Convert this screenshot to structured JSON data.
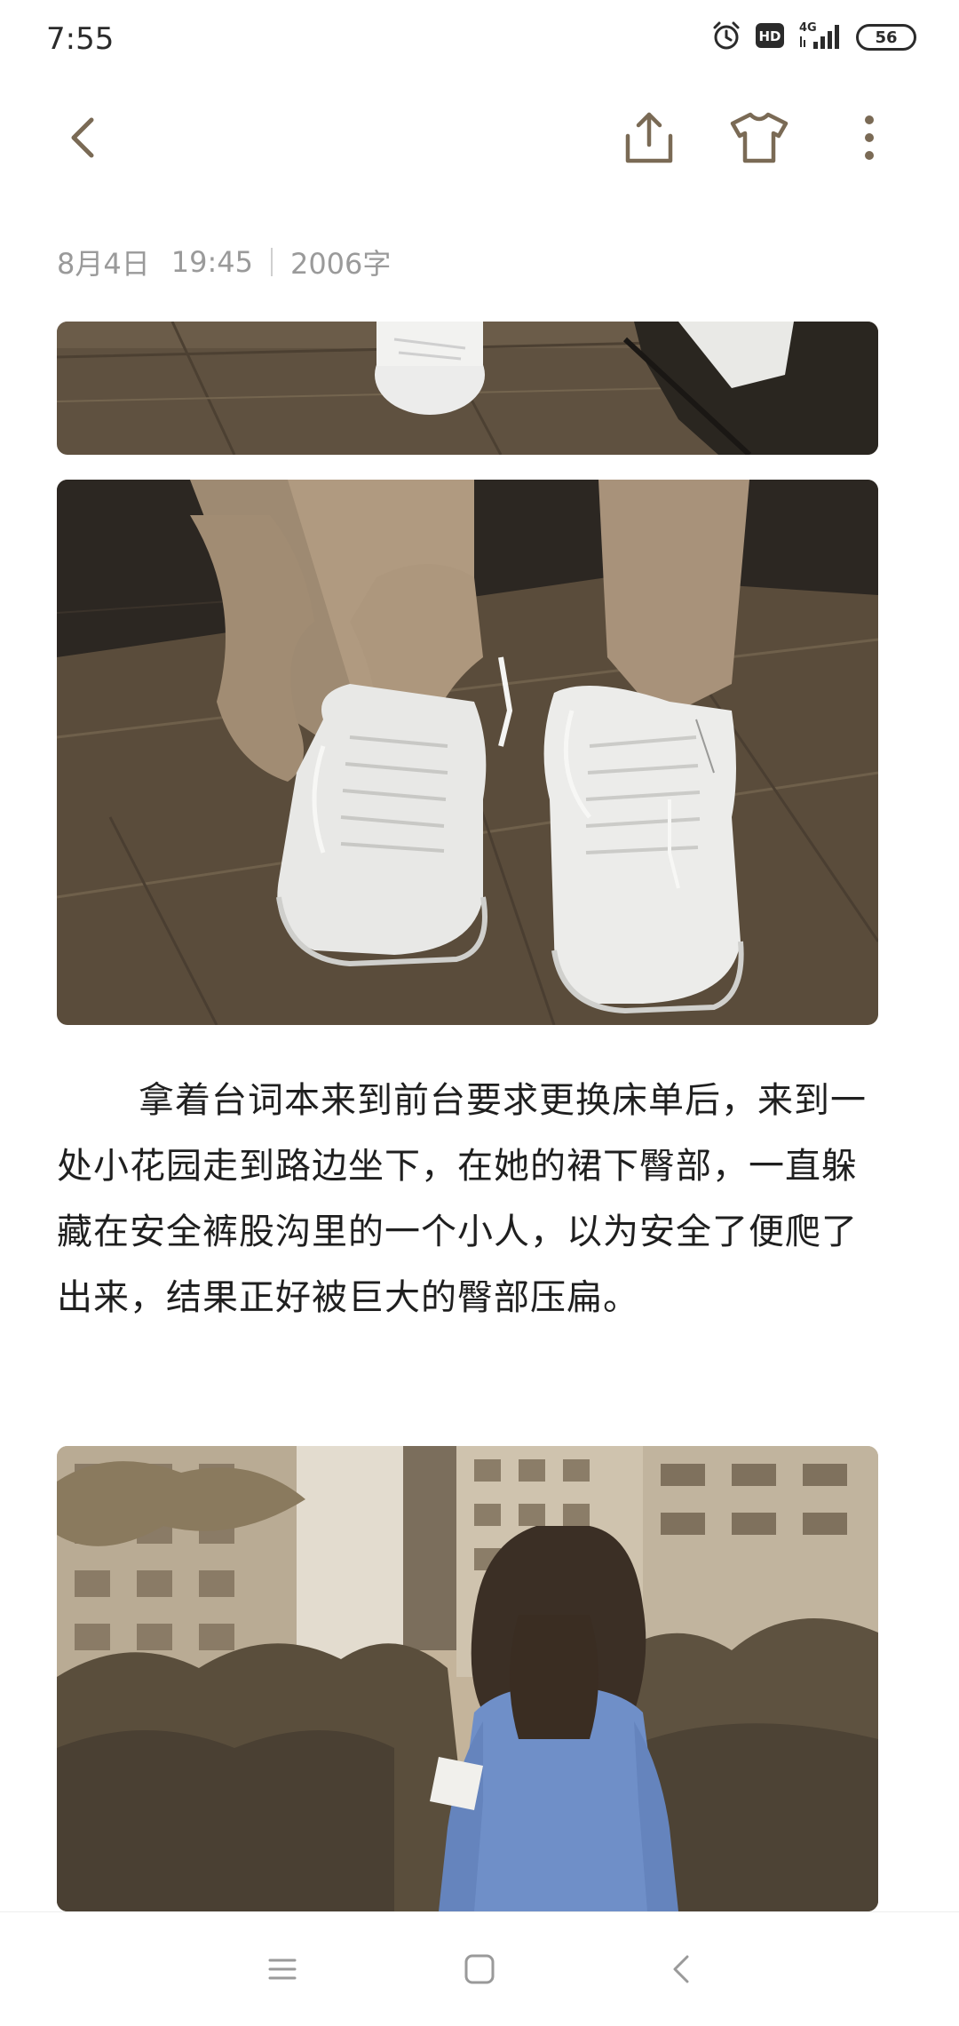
{
  "status_bar": {
    "time": "7:55",
    "network_label": "4G",
    "hd_label": "HD",
    "battery_level": "56",
    "icons": [
      "alarm-icon",
      "hd-icon",
      "signal-icon",
      "battery-icon"
    ]
  },
  "toolbar": {
    "icons": [
      "back-icon",
      "share-icon",
      "theme-icon",
      "more-icon"
    ]
  },
  "note": {
    "date": "8月4日",
    "time": "19:45",
    "word_count": "2006字",
    "paragraph": "拿着台词本来到前台要求更换床单后，来到一处小花园走到路边坐下，在她的裙下臀部，一直躲藏在安全裤股沟里的一个小人，以为安全了便爬了出来，结果正好被巨大的臀部压扁。"
  },
  "nav_bar": {
    "icons": [
      "menu-icon",
      "home-icon",
      "back-icon"
    ]
  },
  "colors": {
    "background": "#ffffff",
    "text": "#1f1f1f",
    "meta_text": "#9a9a9a",
    "icon": "#7a6a55",
    "nav_icon": "#9a9a9a"
  }
}
